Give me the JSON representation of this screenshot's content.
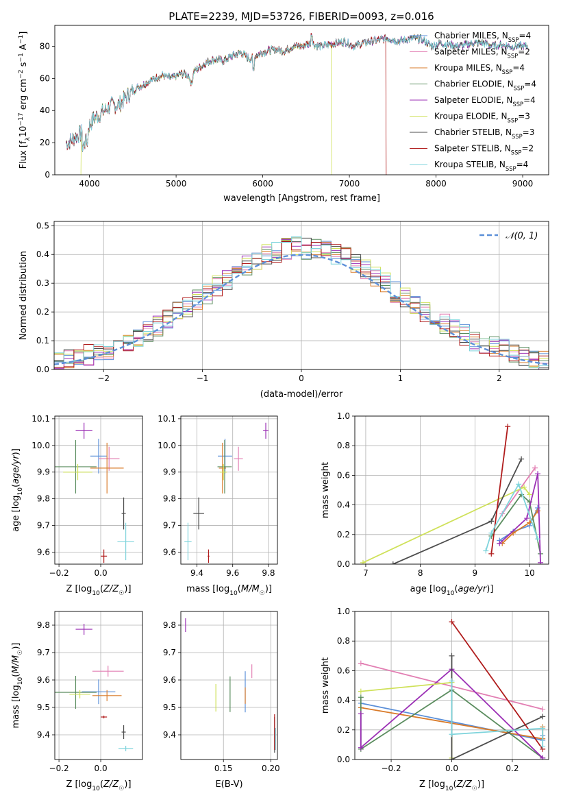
{
  "figure": {
    "title": "PLATE=2239, MJD=53726, FIBERID=0093, z=0.016"
  },
  "models": [
    {
      "name": "Chabrier MILES",
      "nssp": "4",
      "color": "#5b8fd8"
    },
    {
      "name": "Salpeter MILES",
      "nssp": "2",
      "color": "#e27fb3"
    },
    {
      "name": "Kroupa MILES",
      "nssp": "4",
      "color": "#d97b2a"
    },
    {
      "name": "Chabrier ELODIE",
      "nssp": "4",
      "color": "#5a8c5e"
    },
    {
      "name": "Salpeter ELODIE",
      "nssp": "4",
      "color": "#9b2fb5"
    },
    {
      "name": "Kroupa ELODIE",
      "nssp": "3",
      "color": "#cfe15a"
    },
    {
      "name": "Chabrier STELIB",
      "nssp": "3",
      "color": "#4d4d4d"
    },
    {
      "name": "Salpeter STELIB",
      "nssp": "2",
      "color": "#b01c1c"
    },
    {
      "name": "Kroupa STELIB",
      "nssp": "4",
      "color": "#7fd4dc"
    }
  ],
  "chart_data": [
    {
      "id": "spectrum",
      "type": "line",
      "xlabel": "wavelength [Angstrom, rest frame]",
      "ylabel": "Flux [f_λ10^-17 erg cm^-2 s^-1 A^-1]",
      "xlim": [
        3600,
        9300
      ],
      "ylim": [
        0,
        93
      ],
      "xticks": [
        4000,
        5000,
        6000,
        7000,
        8000,
        9000
      ],
      "yticks": [
        0,
        20,
        40,
        60,
        80
      ],
      "legend": "upper-right",
      "x": [
        3750,
        3850,
        3950,
        4050,
        4150,
        4250,
        4350,
        4450,
        4550,
        4650,
        4750,
        4850,
        4950,
        5050,
        5150,
        5250,
        5350,
        5450,
        5550,
        5650,
        5750,
        5850,
        5950,
        6050,
        6150,
        6250,
        6350,
        6450,
        6550,
        6650,
        6750,
        6850,
        6950,
        7050,
        7150,
        7250,
        7350,
        7450,
        7550,
        7650,
        7750,
        7850,
        7950,
        8050,
        8150,
        8250,
        8350,
        8450,
        8550,
        8650,
        8750,
        8850,
        8950,
        9050
      ],
      "y": [
        20,
        24,
        27,
        35,
        39,
        43,
        44,
        50,
        54,
        57,
        60,
        62,
        60,
        63,
        62,
        66,
        70,
        72,
        71,
        74,
        76,
        72,
        75,
        77,
        78,
        77,
        80,
        80,
        82,
        80,
        81,
        82,
        83,
        80,
        82,
        83,
        84,
        85,
        83,
        84,
        85,
        84,
        80,
        82,
        81,
        80,
        81,
        82,
        82,
        80,
        81,
        80,
        80,
        80
      ]
    },
    {
      "id": "residuals",
      "type": "step",
      "xlabel": "(data-model)/error",
      "ylabel": "Normed distribution",
      "xlim": [
        -2.5,
        2.5
      ],
      "ylim": [
        0,
        0.515
      ],
      "xticks": [
        -2,
        -1,
        0,
        1,
        2
      ],
      "yticks": [
        0.0,
        0.1,
        0.2,
        0.3,
        0.4,
        0.5
      ],
      "reference_label": "𝒩(0, 1)",
      "reference_color": "#5b8fd8",
      "bin_edges": [
        -2.5,
        -2.4,
        -2.3,
        -2.2,
        -2.1,
        -2.0,
        -1.9,
        -1.8,
        -1.7,
        -1.6,
        -1.5,
        -1.4,
        -1.3,
        -1.2,
        -1.1,
        -1.0,
        -0.9,
        -0.8,
        -0.7,
        -0.6,
        -0.5,
        -0.4,
        -0.3,
        -0.2,
        -0.1,
        0.0,
        0.1,
        0.2,
        0.3,
        0.4,
        0.5,
        0.6,
        0.7,
        0.8,
        0.9,
        1.0,
        1.1,
        1.2,
        1.3,
        1.4,
        1.5,
        1.6,
        1.7,
        1.8,
        1.9,
        2.0,
        2.1,
        2.2,
        2.3,
        2.4,
        2.5
      ],
      "base_density": [
        0.03,
        0.04,
        0.04,
        0.05,
        0.06,
        0.07,
        0.08,
        0.09,
        0.11,
        0.13,
        0.15,
        0.17,
        0.2,
        0.22,
        0.24,
        0.26,
        0.29,
        0.31,
        0.34,
        0.36,
        0.38,
        0.4,
        0.41,
        0.42,
        0.43,
        0.42,
        0.42,
        0.41,
        0.4,
        0.39,
        0.37,
        0.35,
        0.32,
        0.3,
        0.27,
        0.25,
        0.22,
        0.2,
        0.18,
        0.16,
        0.14,
        0.12,
        0.1,
        0.09,
        0.08,
        0.07,
        0.06,
        0.05,
        0.04,
        0.03
      ]
    },
    {
      "id": "age-vs-z",
      "type": "errorbar",
      "xlabel": "Z [log10(Z/Z☉)]",
      "ylabel": "age  [log10(age/yr)]",
      "xlim": [
        -0.22,
        0.2
      ],
      "ylim": [
        9.555,
        10.11
      ],
      "xticks": [
        -0.2,
        0.0
      ],
      "xtick_labels": [
        "−0.2",
        "0.0"
      ],
      "yticks": [
        9.6,
        9.7,
        9.8,
        9.9,
        10.0,
        10.1
      ],
      "points": [
        {
          "x": -0.01,
          "y": 9.96,
          "xerr": 0.04,
          "yerr": 0.065
        },
        {
          "x": 0.04,
          "y": 9.95,
          "xerr": 0.05,
          "yerr": 0.045
        },
        {
          "x": 0.03,
          "y": 9.915,
          "xerr": 0.08,
          "yerr": 0.095
        },
        {
          "x": -0.12,
          "y": 9.92,
          "xerr": 0.1,
          "yerr": 0.1
        },
        {
          "x": -0.08,
          "y": 10.055,
          "xerr": 0.04,
          "yerr": 0.03
        },
        {
          "x": -0.11,
          "y": 9.9,
          "xerr": 0.07,
          "yerr": 0.03
        },
        {
          "x": 0.11,
          "y": 9.745,
          "xerr": 0.01,
          "yerr": 0.06
        },
        {
          "x": 0.015,
          "y": 9.585,
          "xerr": 0.015,
          "yerr": 0.025
        },
        {
          "x": 0.12,
          "y": 9.64,
          "xerr": 0.04,
          "yerr": 0.07
        }
      ]
    },
    {
      "id": "age-vs-mass",
      "type": "errorbar",
      "xlabel": "mass [log10(M/M☉)]",
      "ylabel": "",
      "xlim": [
        9.31,
        9.85
      ],
      "ylim": [
        9.555,
        10.11
      ],
      "xticks": [
        9.4,
        9.6,
        9.8
      ],
      "yticks": [
        9.6,
        9.7,
        9.8,
        9.9,
        10.0,
        10.1
      ],
      "points": [
        {
          "x": 9.557,
          "y": 9.96,
          "xerr": 0.04,
          "yerr": 0.065
        },
        {
          "x": 9.632,
          "y": 9.95,
          "xerr": 0.025,
          "yerr": 0.045
        },
        {
          "x": 9.543,
          "y": 9.915,
          "xerr": 0.02,
          "yerr": 0.095
        },
        {
          "x": 9.555,
          "y": 9.92,
          "xerr": 0.04,
          "yerr": 0.1
        },
        {
          "x": 9.785,
          "y": 10.055,
          "xerr": 0.015,
          "yerr": 0.03
        },
        {
          "x": 9.548,
          "y": 9.9,
          "xerr": 0.02,
          "yerr": 0.03
        },
        {
          "x": 9.41,
          "y": 9.745,
          "xerr": 0.03,
          "yerr": 0.06
        },
        {
          "x": 9.465,
          "y": 9.585,
          "xerr": 0.005,
          "yerr": 0.025
        },
        {
          "x": 9.35,
          "y": 9.64,
          "xerr": 0.02,
          "yerr": 0.07
        }
      ]
    },
    {
      "id": "weight-vs-age",
      "type": "line",
      "xlabel": "age  [log10(age/yr)]",
      "ylabel": "mass weight",
      "xlim": [
        6.8,
        10.35
      ],
      "ylim": [
        0,
        1
      ],
      "xticks": [
        7,
        8,
        9,
        10
      ],
      "yticks": [
        0.0,
        0.2,
        0.4,
        0.6,
        0.8,
        1.0
      ],
      "series": [
        {
          "x": [
            9.45,
            9.7,
            10.0,
            10.15
          ],
          "y": [
            0.16,
            0.22,
            0.26,
            0.38
          ]
        },
        {
          "x": [
            9.5,
            10.1
          ],
          "y": [
            0.34,
            0.65
          ]
        },
        {
          "x": [
            9.5,
            9.7,
            10.0,
            10.15
          ],
          "y": [
            0.14,
            0.21,
            0.28,
            0.36
          ]
        },
        {
          "x": [
            9.3,
            9.85,
            10.0,
            10.2
          ],
          "y": [
            0.19,
            0.47,
            0.42,
            0.07
          ]
        },
        {
          "x": [
            9.45,
            9.95,
            10.15,
            10.2
          ],
          "y": [
            0.14,
            0.31,
            0.61,
            0.01
          ]
        },
        {
          "x": [
            6.95,
            9.9,
            10.0
          ],
          "y": [
            0.01,
            0.52,
            0.47
          ]
        },
        {
          "x": [
            7.5,
            9.3,
            9.85
          ],
          "y": [
            0.0,
            0.29,
            0.71
          ]
        },
        {
          "x": [
            9.3,
            9.6
          ],
          "y": [
            0.07,
            0.93
          ]
        },
        {
          "x": [
            9.2,
            9.3,
            9.8,
            10.15
          ],
          "y": [
            0.09,
            0.21,
            0.54,
            0.17
          ]
        }
      ]
    },
    {
      "id": "mass-vs-z",
      "type": "errorbar",
      "xlabel": "Z [log10(Z/Z☉)]",
      "ylabel": "mass [log10(M/M☉)]",
      "xlim": [
        -0.22,
        0.2
      ],
      "ylim": [
        9.31,
        9.85
      ],
      "xticks": [
        -0.2,
        0.0
      ],
      "xtick_labels": [
        "−0.2",
        "0.0"
      ],
      "yticks": [
        9.4,
        9.5,
        9.6,
        9.7,
        9.8
      ],
      "points": [
        {
          "x": -0.01,
          "y": 9.557,
          "xerr": 0.08,
          "yerr": 0.045
        },
        {
          "x": 0.035,
          "y": 9.632,
          "xerr": 0.075,
          "yerr": 0.02
        },
        {
          "x": 0.03,
          "y": 9.543,
          "xerr": 0.07,
          "yerr": 0.02
        },
        {
          "x": -0.12,
          "y": 9.555,
          "xerr": 0.1,
          "yerr": 0.06
        },
        {
          "x": -0.08,
          "y": 9.785,
          "xerr": 0.04,
          "yerr": 0.02
        },
        {
          "x": -0.1,
          "y": 9.548,
          "xerr": 0.05,
          "yerr": 0.015
        },
        {
          "x": 0.11,
          "y": 9.41,
          "xerr": 0.01,
          "yerr": 0.025
        },
        {
          "x": 0.015,
          "y": 9.465,
          "xerr": 0.015,
          "yerr": 0.005
        },
        {
          "x": 0.12,
          "y": 9.35,
          "xerr": 0.035,
          "yerr": 0.01
        }
      ]
    },
    {
      "id": "mass-vs-ebv",
      "type": "errorbar",
      "xlabel": "E(B-V)",
      "ylabel": "",
      "xlim": [
        0.105,
        0.207
      ],
      "ylim": [
        9.31,
        9.85
      ],
      "xticks": [
        0.1,
        0.15,
        0.2
      ],
      "xtick_labels": [
        "0.10",
        "0.15",
        "0.20"
      ],
      "yticks": [
        9.4,
        9.5,
        9.6,
        9.7,
        9.8
      ],
      "points": [
        {
          "x": 0.173,
          "y": 9.557,
          "xerr": 0.0,
          "yerr": 0.075
        },
        {
          "x": 0.18,
          "y": 9.632,
          "xerr": 0.0,
          "yerr": 0.025
        },
        {
          "x": 0.173,
          "y": 9.543,
          "xerr": 0.0,
          "yerr": 0.03
        },
        {
          "x": 0.157,
          "y": 9.548,
          "xerr": 0.0,
          "yerr": 0.065
        },
        {
          "x": 0.11,
          "y": 9.8,
          "xerr": 0.0,
          "yerr": 0.025
        },
        {
          "x": 0.142,
          "y": 9.535,
          "xerr": 0.0,
          "yerr": 0.05
        },
        {
          "x": 0.204,
          "y": 9.4,
          "xerr": 0.0,
          "yerr": 0.065
        },
        {
          "x": 0.204,
          "y": 9.41,
          "xerr": 0.0,
          "yerr": 0.065
        },
        {
          "x": 0.205,
          "y": 9.385,
          "xerr": 0.0,
          "yerr": 0.04
        }
      ]
    },
    {
      "id": "weight-vs-z",
      "type": "line",
      "xlabel": "Z [log10(Z/Z☉)]",
      "ylabel": "mass weight",
      "xlim": [
        -0.32,
        0.32
      ],
      "ylim": [
        0,
        1
      ],
      "xticks": [
        -0.2,
        0.0,
        0.2
      ],
      "xtick_labels": [
        "−0.2",
        "0.0",
        "0.2"
      ],
      "yticks": [
        0.0,
        0.2,
        0.4,
        0.6,
        0.8,
        1.0
      ],
      "series": [
        {
          "x": [
            -0.3,
            0.3,
            0.3
          ],
          "y": [
            0.38,
            0.13,
            0.16
          ]
        },
        {
          "x": [
            -0.3,
            0.3
          ],
          "y": [
            0.65,
            0.34
          ]
        },
        {
          "x": [
            -0.3,
            0.3,
            0.3
          ],
          "y": [
            0.35,
            0.14,
            0.22
          ]
        },
        {
          "x": [
            -0.3,
            -0.3,
            0.0,
            0.3
          ],
          "y": [
            0.42,
            0.07,
            0.47,
            0.01
          ]
        },
        {
          "x": [
            -0.3,
            -0.3,
            0.0,
            0.3
          ],
          "y": [
            0.31,
            0.08,
            0.61,
            0.01
          ]
        },
        {
          "x": [
            -0.3,
            0.0,
            0.0
          ],
          "y": [
            0.46,
            0.52,
            0.01
          ]
        },
        {
          "x": [
            0.0,
            0.0,
            0.3
          ],
          "y": [
            0.7,
            0.0,
            0.29
          ]
        },
        {
          "x": [
            0.0,
            0.3
          ],
          "y": [
            0.93,
            0.07
          ]
        },
        {
          "x": [
            0.0,
            0.0,
            0.3,
            0.3
          ],
          "y": [
            0.53,
            0.17,
            0.21,
            0.09
          ]
        }
      ]
    }
  ]
}
